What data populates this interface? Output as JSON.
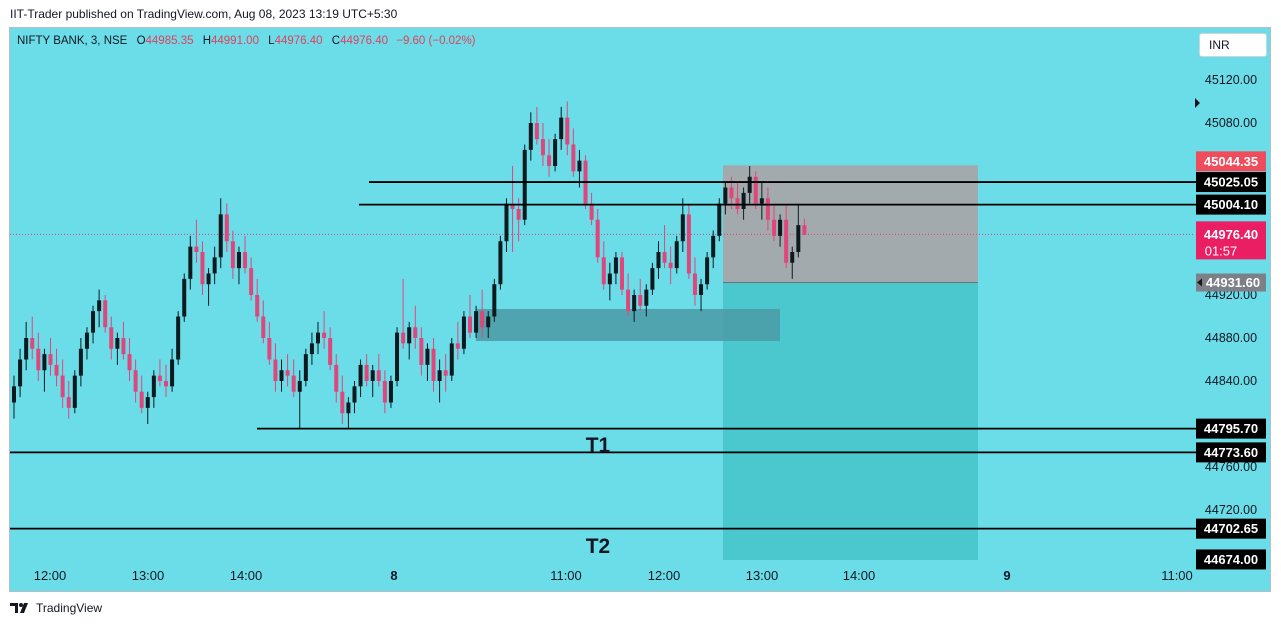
{
  "publisher_line": "IIT-Trader published on TradingView.com, Aug 08, 2023 13:19 UTC+5:30",
  "legend": {
    "symbol": "NIFTY BANK, 3, NSE",
    "o_label": "O",
    "o": "44985.35",
    "h_label": "H",
    "h": "44991.00",
    "l_label": "L",
    "l": "44976.40",
    "c_label": "C",
    "c": "44976.40",
    "change": "−9.60 (−0.02%)"
  },
  "currency": "INR",
  "footer": {
    "brand": "TradingView"
  },
  "colors": {
    "background": "#6adde9",
    "up": "#0c1a1d",
    "down": "#e0467a",
    "stop_zone": "#a6a6aa",
    "target_zone": "#47c5ca",
    "demand_zone": "#4b9aa6",
    "red_label": "#ef4d5b",
    "pink_label": "#e91e63",
    "grey_label": "#7e8088"
  },
  "chart_data": {
    "type": "candlestick",
    "y_axis_ticks": [
      45120,
      45080,
      44920,
      44880,
      44840,
      44760,
      44720
    ],
    "ylim": [
      44662,
      45138
    ],
    "x_axis_ticks": [
      "12:00",
      "13:00",
      "14:00",
      "8",
      "11:00",
      "12:00",
      "13:00",
      "14:00",
      "9",
      "11:00"
    ],
    "horizontal_levels": [
      {
        "price": 45025.05,
        "label": "45025.05",
        "from_time": "8 10:00"
      },
      {
        "price": 45004.1,
        "label": "45004.10",
        "from_time": "8 09:55"
      },
      {
        "price": 44795.7,
        "label": "44795.70",
        "from_time": "7 14:15"
      },
      {
        "price": 44773.6,
        "label": "44773.60",
        "from_time": "start"
      },
      {
        "price": 44702.65,
        "label": "44702.65",
        "from_time": "start"
      }
    ],
    "price_labels": [
      {
        "price": 45044.35,
        "label": "45044.35",
        "kind": "stop"
      },
      {
        "price": 44976.4,
        "label": "44976.40",
        "countdown": "01:57",
        "kind": "last"
      },
      {
        "price": 44931.6,
        "label": "44931.60",
        "kind": "entry"
      },
      {
        "price": 44674.0,
        "label": "44674.00",
        "kind": "target"
      }
    ],
    "annotations": [
      "T1",
      "T2"
    ],
    "zones": {
      "short_position": {
        "entry": 44931.6,
        "stop": 45044.35,
        "target": 44674.0,
        "from": "8 12:35",
        "to": "8 15:15"
      },
      "demand": {
        "top": 44907,
        "bottom": 44880,
        "from": "8 10:05",
        "to": "8 12:30"
      }
    },
    "candles": [
      [
        44820,
        44845,
        44805,
        44835
      ],
      [
        44835,
        44870,
        44825,
        44860
      ],
      [
        44860,
        44895,
        44850,
        44880
      ],
      [
        44880,
        44900,
        44860,
        44870
      ],
      [
        44870,
        44885,
        44840,
        44850
      ],
      [
        44850,
        44870,
        44830,
        44865
      ],
      [
        44865,
        44880,
        44845,
        44855
      ],
      [
        44855,
        44870,
        44835,
        44845
      ],
      [
        44845,
        44860,
        44815,
        44825
      ],
      [
        44825,
        44840,
        44805,
        44815
      ],
      [
        44815,
        44850,
        44810,
        44845
      ],
      [
        44845,
        44880,
        44835,
        44870
      ],
      [
        44870,
        44890,
        44860,
        44885
      ],
      [
        44885,
        44910,
        44875,
        44905
      ],
      [
        44905,
        44925,
        44890,
        44915
      ],
      [
        44915,
        44920,
        44885,
        44890
      ],
      [
        44890,
        44900,
        44860,
        44870
      ],
      [
        44870,
        44885,
        44855,
        44880
      ],
      [
        44880,
        44895,
        44860,
        44865
      ],
      [
        44865,
        44880,
        44840,
        44850
      ],
      [
        44850,
        44860,
        44820,
        44830
      ],
      [
        44830,
        44845,
        44810,
        44815
      ],
      [
        44815,
        44830,
        44800,
        44825
      ],
      [
        44825,
        44850,
        44815,
        44845
      ],
      [
        44845,
        44860,
        44835,
        44840
      ],
      [
        44840,
        44855,
        44825,
        44835
      ],
      [
        44835,
        44870,
        44830,
        44860
      ],
      [
        44860,
        44905,
        44855,
        44900
      ],
      [
        44900,
        44940,
        44895,
        44935
      ],
      [
        44935,
        44975,
        44925,
        44965
      ],
      [
        44965,
        44990,
        44950,
        44960
      ],
      [
        44960,
        44970,
        44920,
        44930
      ],
      [
        44930,
        44945,
        44910,
        44940
      ],
      [
        44940,
        44965,
        44930,
        44955
      ],
      [
        44955,
        45010,
        44945,
        44995
      ],
      [
        44995,
        45005,
        44960,
        44970
      ],
      [
        44970,
        44980,
        44935,
        44945
      ],
      [
        44945,
        44965,
        44930,
        44960
      ],
      [
        44960,
        44975,
        44940,
        44945
      ],
      [
        44945,
        44955,
        44915,
        44920
      ],
      [
        44920,
        44935,
        44895,
        44900
      ],
      [
        44900,
        44915,
        44875,
        44880
      ],
      [
        44880,
        44895,
        44855,
        44860
      ],
      [
        44860,
        44875,
        44830,
        44840
      ],
      [
        44840,
        44860,
        44830,
        44850
      ],
      [
        44850,
        44865,
        44835,
        44845
      ],
      [
        44845,
        44860,
        44825,
        44830
      ],
      [
        44830,
        44850,
        44795,
        44840
      ],
      [
        44840,
        44870,
        44835,
        44865
      ],
      [
        44865,
        44885,
        44855,
        44875
      ],
      [
        44875,
        44895,
        44865,
        44885
      ],
      [
        44885,
        44905,
        44870,
        44880
      ],
      [
        44880,
        44890,
        44850,
        44855
      ],
      [
        44855,
        44865,
        44820,
        44830
      ],
      [
        44830,
        44845,
        44800,
        44810
      ],
      [
        44810,
        44825,
        44795,
        44820
      ],
      [
        44820,
        44840,
        44810,
        44835
      ],
      [
        44835,
        44860,
        44825,
        44855
      ],
      [
        44855,
        44865,
        44835,
        44840
      ],
      [
        44840,
        44855,
        44825,
        44850
      ],
      [
        44850,
        44865,
        44835,
        44840
      ],
      [
        44840,
        44850,
        44810,
        44820
      ],
      [
        44820,
        44845,
        44815,
        44840
      ],
      [
        44840,
        44890,
        44835,
        44885
      ],
      [
        44885,
        44935,
        44870,
        44875
      ],
      [
        44875,
        44895,
        44860,
        44890
      ],
      [
        44890,
        44910,
        44870,
        44880
      ],
      [
        44880,
        44890,
        44845,
        44855
      ],
      [
        44855,
        44875,
        44840,
        44870
      ],
      [
        44870,
        44880,
        44830,
        44840
      ],
      [
        44840,
        44860,
        44820,
        44850
      ],
      [
        44850,
        44865,
        44830,
        44845
      ],
      [
        44845,
        44880,
        44840,
        44875
      ],
      [
        44875,
        44895,
        44860,
        44870
      ],
      [
        44870,
        44905,
        44865,
        44900
      ],
      [
        44900,
        44920,
        44880,
        44885
      ],
      [
        44885,
        44910,
        44880,
        44905
      ],
      [
        44905,
        44925,
        44880,
        44890
      ],
      [
        44890,
        44905,
        44880,
        44900
      ],
      [
        44900,
        44935,
        44895,
        44930
      ],
      [
        44930,
        44975,
        44925,
        44970
      ],
      [
        44970,
        45010,
        44960,
        45005
      ],
      [
        45005,
        45040,
        44960,
        45000
      ],
      [
        45000,
        45010,
        44970,
        44990
      ],
      [
        44990,
        45060,
        44985,
        45055
      ],
      [
        45055,
        45090,
        45045,
        45080
      ],
      [
        45080,
        45095,
        45060,
        45065
      ],
      [
        45065,
        45080,
        45040,
        45050
      ],
      [
        45050,
        45065,
        45030,
        45040
      ],
      [
        45040,
        45070,
        45035,
        45065
      ],
      [
        45065,
        45095,
        45055,
        45085
      ],
      [
        45085,
        45100,
        45050,
        45060
      ],
      [
        45060,
        45075,
        45030,
        45035
      ],
      [
        45035,
        45055,
        45020,
        45045
      ],
      [
        45045,
        45050,
        45000,
        45005
      ],
      [
        45005,
        45015,
        44985,
        44990
      ],
      [
        44990,
        45000,
        44950,
        44955
      ],
      [
        44955,
        44970,
        44925,
        44930
      ],
      [
        44930,
        44950,
        44915,
        44940
      ],
      [
        44940,
        44960,
        44930,
        44955
      ],
      [
        44955,
        44960,
        44920,
        44925
      ],
      [
        44925,
        44940,
        44900,
        44905
      ],
      [
        44905,
        44925,
        44895,
        44920
      ],
      [
        44920,
        44935,
        44905,
        44910
      ],
      [
        44910,
        44930,
        44900,
        44925
      ],
      [
        44925,
        44950,
        44920,
        44945
      ],
      [
        44945,
        44970,
        44935,
        44960
      ],
      [
        44960,
        44985,
        44945,
        44950
      ],
      [
        44950,
        44965,
        44930,
        44945
      ],
      [
        44945,
        44975,
        44940,
        44970
      ],
      [
        44970,
        45010,
        44960,
        44995
      ],
      [
        44995,
        45005,
        44935,
        44940
      ],
      [
        44940,
        44955,
        44910,
        44920
      ],
      [
        44920,
        44935,
        44905,
        44930
      ],
      [
        44930,
        44960,
        44925,
        44955
      ],
      [
        44955,
        44980,
        44945,
        44975
      ],
      [
        44975,
        45010,
        44970,
        45005
      ],
      [
        45005,
        45025,
        44995,
        45020
      ],
      [
        45020,
        45030,
        45000,
        45010
      ],
      [
        45010,
        45025,
        44995,
        45000
      ],
      [
        45000,
        45020,
        44990,
        45015
      ],
      [
        45015,
        45040,
        45005,
        45030
      ],
      [
        45030,
        45035,
        45000,
        45005
      ],
      [
        45005,
        45025,
        44990,
        45010
      ],
      [
        45010,
        45020,
        44980,
        44990
      ],
      [
        44990,
        45005,
        44970,
        44975
      ],
      [
        44975,
        44995,
        44965,
        44990
      ],
      [
        44990,
        45005,
        44945,
        44950
      ],
      [
        44950,
        44965,
        44935,
        44960
      ],
      [
        44960,
        45005,
        44955,
        44985
      ],
      [
        44985,
        44991,
        44976,
        44976
      ]
    ]
  }
}
